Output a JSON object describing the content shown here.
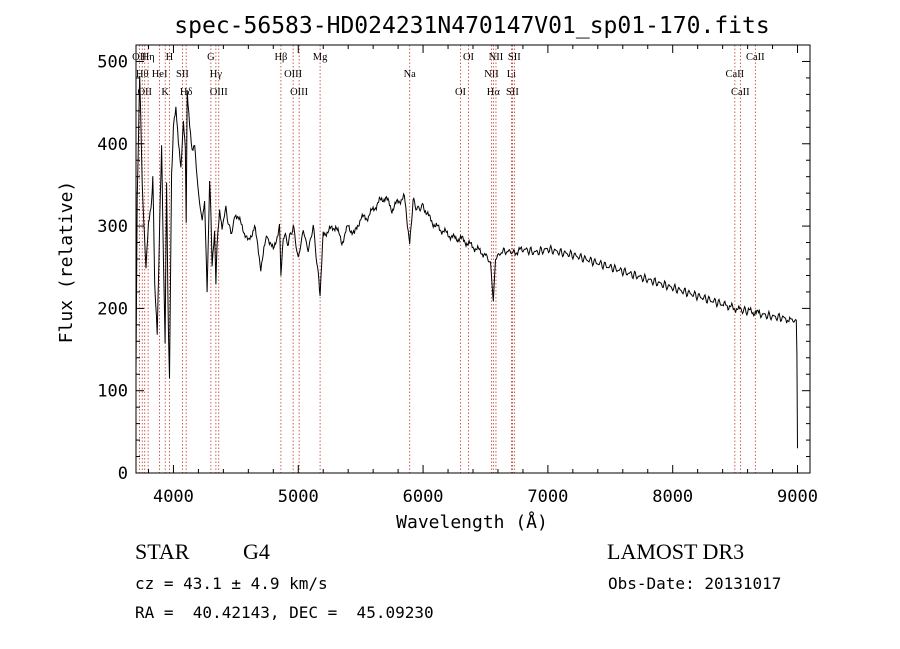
{
  "chart_data": {
    "type": "line",
    "title": "spec-56583-HD024231N470147V01_sp01-170.fits",
    "xlabel": "Wavelength (Å)",
    "ylabel": "Flux (relative)",
    "xlim": [
      3700,
      9100
    ],
    "ylim": [
      0,
      520
    ],
    "xticks": [
      4000,
      5000,
      6000,
      7000,
      8000,
      9000
    ],
    "yticks": [
      0,
      100,
      200,
      300,
      400,
      500
    ],
    "grid": false,
    "series": [
      {
        "x": [
          3700,
          3710,
          3730,
          3750,
          3780,
          3800,
          3820,
          3835,
          3850,
          3870,
          3890,
          3905,
          3920,
          3933,
          3945,
          3960,
          3968,
          3985,
          4000,
          4020,
          4040,
          4060,
          4080,
          4095,
          4102,
          4110,
          4130,
          4150,
          4170,
          4190,
          4210,
          4230,
          4250,
          4270,
          4290,
          4300,
          4310,
          4330,
          4340,
          4350,
          4370,
          4390,
          4420,
          4460,
          4500,
          4550,
          4600,
          4650,
          4700,
          4750,
          4800,
          4850,
          4861,
          4880,
          4920,
          4960,
          5000,
          5040,
          5080,
          5120,
          5160,
          5175,
          5200,
          5250,
          5300,
          5350,
          5400,
          5450,
          5500,
          5550,
          5600,
          5650,
          5700,
          5750,
          5800,
          5850,
          5893,
          5920,
          5960,
          6000,
          6050,
          6100,
          6150,
          6200,
          6250,
          6300,
          6350,
          6400,
          6450,
          6500,
          6540,
          6563,
          6580,
          6620,
          6680,
          6720,
          6800,
          6900,
          7000,
          7100,
          7200,
          7300,
          7400,
          7500,
          7600,
          7700,
          7800,
          7900,
          8000,
          8100,
          8200,
          8300,
          8400,
          8498,
          8542,
          8600,
          8662,
          8700,
          8800,
          8900,
          8950,
          8990,
          8995,
          9000
        ],
        "y": [
          130,
          330,
          480,
          350,
          250,
          300,
          320,
          360,
          230,
          170,
          300,
          400,
          260,
          160,
          350,
          170,
          120,
          360,
          420,
          440,
          400,
          370,
          430,
          395,
          300,
          460,
          420,
          390,
          400,
          360,
          330,
          310,
          330,
          220,
          350,
          320,
          250,
          290,
          230,
          280,
          320,
          300,
          320,
          290,
          315,
          300,
          280,
          300,
          250,
          290,
          270,
          300,
          240,
          290,
          280,
          300,
          260,
          295,
          270,
          300,
          240,
          215,
          290,
          295,
          300,
          280,
          300,
          290,
          310,
          310,
          320,
          330,
          335,
          320,
          330,
          335,
          280,
          330,
          320,
          325,
          310,
          300,
          295,
          290,
          285,
          285,
          280,
          275,
          270,
          265,
          255,
          210,
          260,
          268,
          270,
          267,
          272,
          268,
          272,
          268,
          265,
          260,
          255,
          250,
          245,
          240,
          235,
          230,
          225,
          220,
          215,
          210,
          205,
          200,
          198,
          197,
          195,
          193,
          190,
          188,
          185,
          185,
          150,
          30
        ]
      }
    ],
    "lines": [
      {
        "x": 3727,
        "label": "OII"
      },
      {
        "x": 3750,
        "label": "Hθ"
      },
      {
        "x": 3770,
        "label": "OII"
      },
      {
        "x": 3797,
        "label": "Hη"
      },
      {
        "x": 3889,
        "label": "HeI"
      },
      {
        "x": 3934,
        "label": "K"
      },
      {
        "x": 3968,
        "label": "H"
      },
      {
        "x": 4072,
        "label": "SII"
      },
      {
        "x": 4102,
        "label": "Hδ"
      },
      {
        "x": 4300,
        "label": "G"
      },
      {
        "x": 4340,
        "label": "Hγ"
      },
      {
        "x": 4363,
        "label": "OIII"
      },
      {
        "x": 4861,
        "label": "Hβ"
      },
      {
        "x": 4959,
        "label": "OIII"
      },
      {
        "x": 5007,
        "label": "OIII"
      },
      {
        "x": 5175,
        "label": "Mg"
      },
      {
        "x": 5893,
        "label": "Na"
      },
      {
        "x": 6300,
        "label": "OI"
      },
      {
        "x": 6364,
        "label": "OI"
      },
      {
        "x": 6548,
        "label": "NII"
      },
      {
        "x": 6563,
        "label": "Hα"
      },
      {
        "x": 6584,
        "label": "NII"
      },
      {
        "x": 6708,
        "label": "Li"
      },
      {
        "x": 6716,
        "label": "SII"
      },
      {
        "x": 6731,
        "label": "SII"
      },
      {
        "x": 8498,
        "label": "CaII"
      },
      {
        "x": 8542,
        "label": "CaII"
      },
      {
        "x": 8662,
        "label": "CaII"
      }
    ]
  },
  "info": {
    "object_class": "STAR",
    "subclass": "G4",
    "survey": "LAMOST DR3",
    "cz": "cz = 43.1 ± 4.9 km/s",
    "obs_date": "Obs-Date: 20131017",
    "coords": "RA =  40.42143, DEC =  45.09230"
  }
}
